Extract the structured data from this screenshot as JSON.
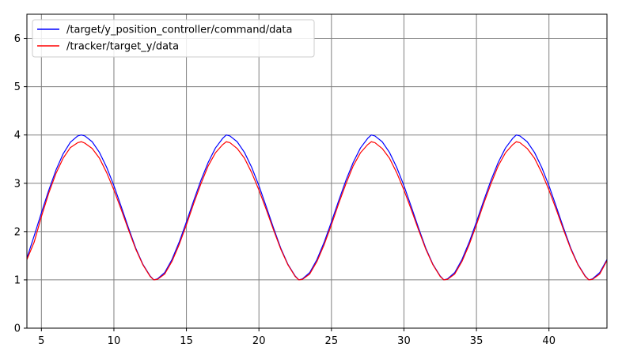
{
  "chart_data": {
    "type": "line",
    "title": "",
    "xlabel": "",
    "ylabel": "",
    "xlim": [
      4,
      44
    ],
    "ylim": [
      0,
      6.5
    ],
    "x_ticks": [
      5,
      10,
      15,
      20,
      25,
      30,
      35,
      40
    ],
    "y_ticks": [
      0,
      1,
      2,
      3,
      4,
      5,
      6
    ],
    "grid": true,
    "legend_position": "top-left",
    "series": [
      {
        "name": "/target/y_position_controller/command/data",
        "color": "#0000ff",
        "x": [
          4,
          4.5,
          5,
          5.5,
          6,
          6.5,
          7,
          7.5,
          7.75,
          8,
          8.5,
          9,
          9.5,
          10,
          10.5,
          11,
          11.5,
          12,
          12.5,
          12.75,
          13,
          13.5,
          14,
          14.5,
          15,
          15.5,
          16,
          16.5,
          17,
          17.5,
          17.75,
          18,
          18.5,
          19,
          19.5,
          20,
          20.5,
          21,
          21.5,
          22,
          22.5,
          22.75,
          23,
          23.5,
          24,
          24.5,
          25,
          25.5,
          26,
          26.5,
          27,
          27.5,
          27.75,
          28,
          28.5,
          29,
          29.5,
          30,
          30.5,
          31,
          31.5,
          32,
          32.5,
          32.75,
          33,
          33.5,
          34,
          34.5,
          35,
          35.5,
          36,
          36.5,
          37,
          37.5,
          37.75,
          38,
          38.5,
          39,
          39.5,
          40,
          40.5,
          41,
          41.5,
          42,
          42.5,
          42.75,
          43,
          43.5,
          44
        ],
        "y": [
          1.45,
          1.91,
          2.39,
          2.85,
          3.27,
          3.61,
          3.85,
          3.98,
          4.0,
          3.98,
          3.86,
          3.64,
          3.33,
          2.95,
          2.52,
          2.08,
          1.66,
          1.32,
          1.08,
          1.0,
          1.02,
          1.15,
          1.42,
          1.78,
          2.2,
          2.64,
          3.06,
          3.43,
          3.73,
          3.93,
          4.0,
          3.98,
          3.86,
          3.64,
          3.33,
          2.95,
          2.52,
          2.08,
          1.66,
          1.32,
          1.08,
          1.0,
          1.02,
          1.15,
          1.42,
          1.78,
          2.2,
          2.64,
          3.06,
          3.43,
          3.73,
          3.93,
          4.0,
          3.98,
          3.86,
          3.64,
          3.33,
          2.95,
          2.52,
          2.08,
          1.66,
          1.32,
          1.08,
          1.0,
          1.02,
          1.15,
          1.42,
          1.78,
          2.2,
          2.64,
          3.06,
          3.43,
          3.73,
          3.93,
          4.0,
          3.98,
          3.86,
          3.64,
          3.33,
          2.95,
          2.52,
          2.08,
          1.66,
          1.32,
          1.08,
          1.0,
          1.02,
          1.15,
          1.42
        ]
      },
      {
        "name": "/tracker/target_y/data",
        "color": "#ff0000",
        "x": [
          4,
          4.5,
          5,
          5.5,
          6,
          6.5,
          7,
          7.5,
          7.75,
          8,
          8.5,
          9,
          9.5,
          10,
          10.5,
          11,
          11.5,
          12,
          12.5,
          12.75,
          13,
          13.5,
          14,
          14.5,
          15,
          15.5,
          16,
          16.5,
          17,
          17.5,
          17.75,
          18,
          18.5,
          19,
          19.5,
          20,
          20.5,
          21,
          21.5,
          22,
          22.5,
          22.75,
          23,
          23.5,
          24,
          24.5,
          25,
          25.5,
          26,
          26.5,
          27,
          27.5,
          27.75,
          28,
          28.5,
          29,
          29.5,
          30,
          30.5,
          31,
          31.5,
          32,
          32.5,
          32.75,
          33,
          33.5,
          34,
          34.5,
          35,
          35.5,
          36,
          36.5,
          37,
          37.5,
          37.75,
          38,
          38.5,
          39,
          39.5,
          40,
          40.5,
          41,
          41.5,
          42,
          42.5,
          42.75,
          43,
          43.5,
          44
        ],
        "y": [
          1.42,
          1.78,
          2.31,
          2.79,
          3.2,
          3.52,
          3.74,
          3.84,
          3.86,
          3.83,
          3.72,
          3.52,
          3.22,
          2.86,
          2.46,
          2.04,
          1.64,
          1.31,
          1.07,
          1.0,
          1.01,
          1.12,
          1.38,
          1.73,
          2.14,
          2.58,
          2.99,
          3.36,
          3.63,
          3.8,
          3.86,
          3.84,
          3.72,
          3.52,
          3.22,
          2.86,
          2.46,
          2.04,
          1.64,
          1.31,
          1.07,
          1.0,
          1.01,
          1.12,
          1.38,
          1.73,
          2.14,
          2.58,
          2.99,
          3.36,
          3.63,
          3.8,
          3.86,
          3.84,
          3.72,
          3.52,
          3.22,
          2.86,
          2.46,
          2.04,
          1.64,
          1.31,
          1.07,
          1.0,
          1.01,
          1.12,
          1.38,
          1.73,
          2.14,
          2.58,
          2.99,
          3.36,
          3.63,
          3.8,
          3.86,
          3.84,
          3.72,
          3.52,
          3.22,
          2.86,
          2.46,
          2.04,
          1.64,
          1.31,
          1.07,
          1.0,
          1.01,
          1.12,
          1.4
        ]
      }
    ],
    "colors": {
      "grid": "#808080",
      "axes": "#000000",
      "background": "#ffffff",
      "legend_border": "#cccccc"
    }
  }
}
